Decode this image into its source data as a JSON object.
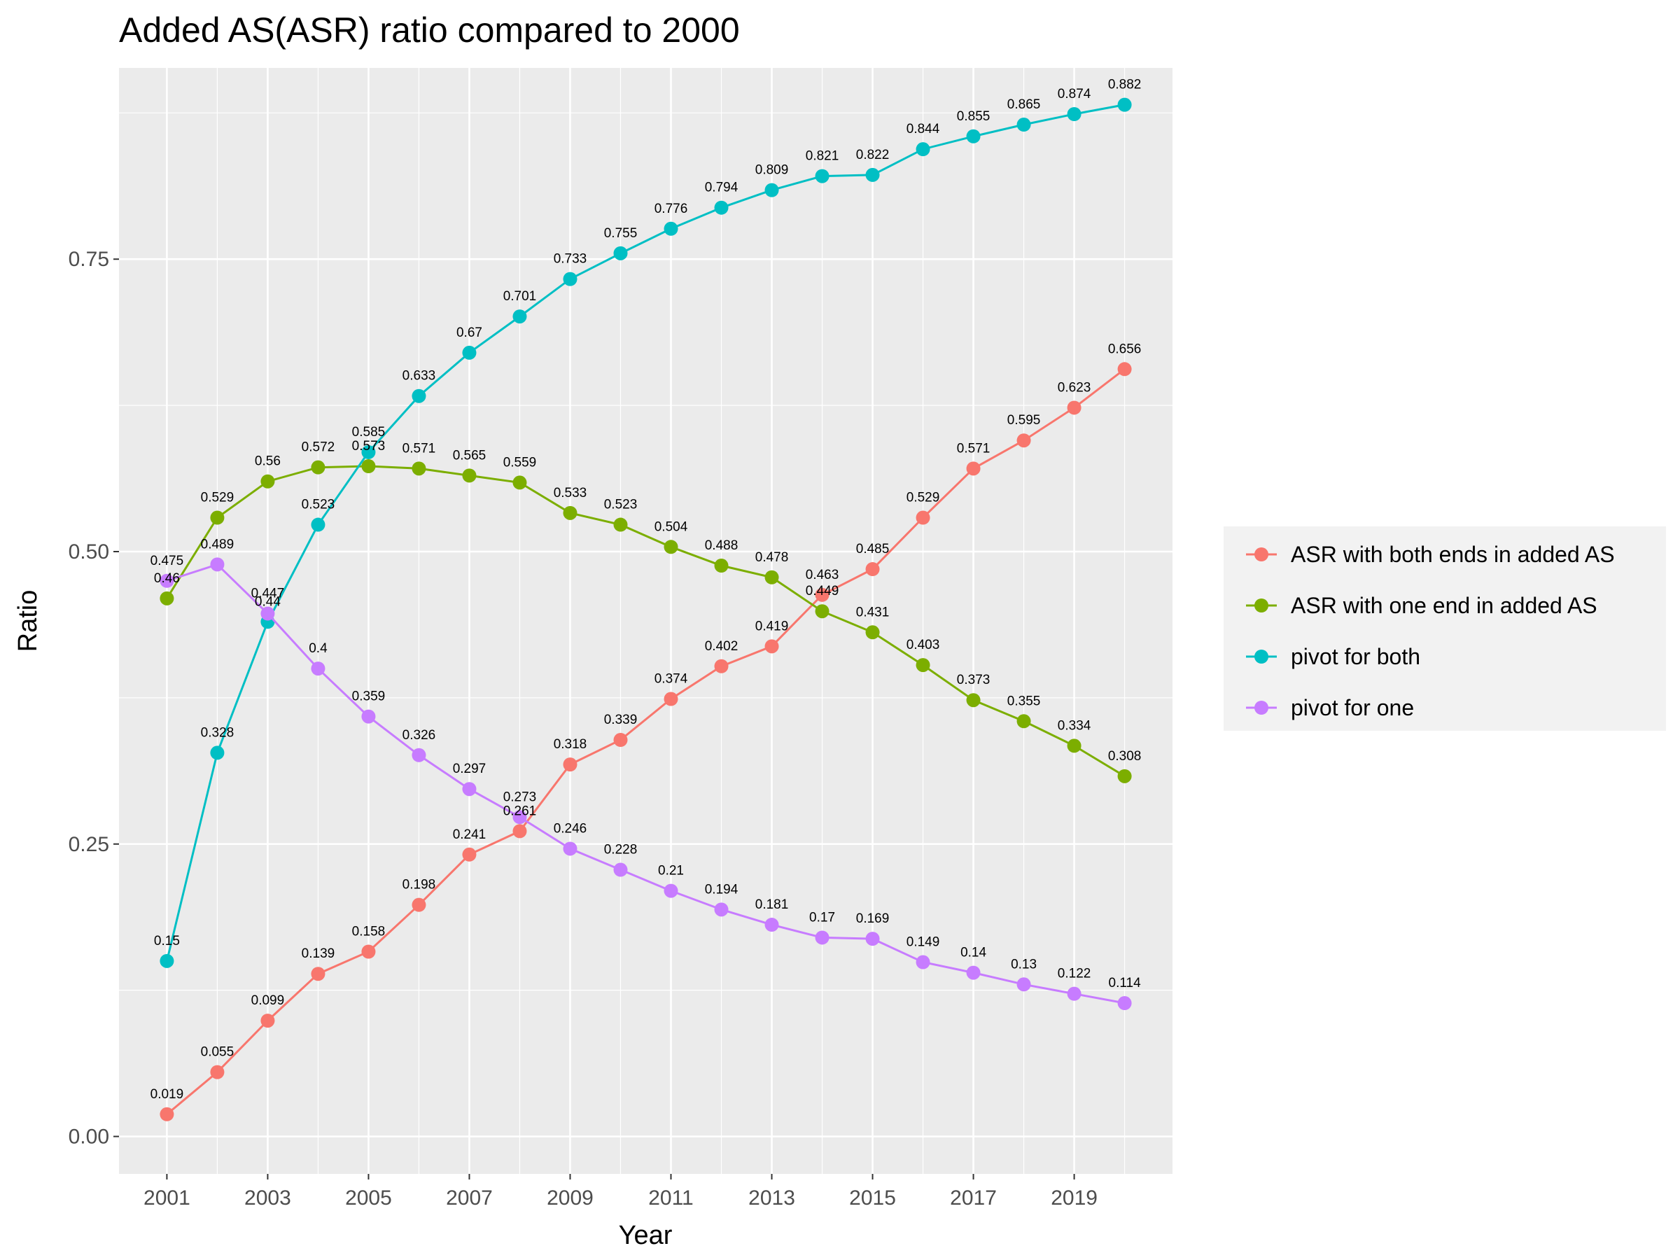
{
  "chart_data": {
    "type": "line",
    "title": "Added AS(ASR) ratio compared to 2000",
    "xlabel": "Year",
    "ylabel": "Ratio",
    "x": [
      2001,
      2002,
      2003,
      2004,
      2005,
      2006,
      2007,
      2008,
      2009,
      2010,
      2011,
      2012,
      2013,
      2014,
      2015,
      2016,
      2017,
      2018,
      2019,
      2020
    ],
    "xticks": [
      "2001",
      "2003",
      "2005",
      "2007",
      "2009",
      "2011",
      "2013",
      "2015",
      "2017",
      "2019"
    ],
    "yticks": [
      "0.00",
      "0.25",
      "0.50",
      "0.75"
    ],
    "ylim": [
      -0.032,
      0.9135
    ],
    "xlim": [
      2000.05,
      2020.95
    ],
    "grid": true,
    "legend_position": "right",
    "series": [
      {
        "name": "ASR with both ends in added AS",
        "color": "#F8766D",
        "values": [
          0.019,
          0.055,
          0.099,
          0.139,
          0.158,
          0.198,
          0.241,
          0.261,
          0.318,
          0.339,
          0.374,
          0.402,
          0.419,
          0.463,
          0.485,
          0.529,
          0.571,
          0.595,
          0.623,
          0.656
        ],
        "labels": [
          "0.019",
          "0.055",
          "0.099",
          "0.139",
          "0.158",
          "0.198",
          "0.241",
          "0.261",
          "0.318",
          "0.339",
          "0.374",
          "0.402",
          "0.419",
          "0.463",
          "0.485",
          "0.529",
          "0.571",
          "0.595",
          "0.623",
          "0.656"
        ]
      },
      {
        "name": "ASR with one end in added AS",
        "color": "#7CAE00",
        "values": [
          0.46,
          0.529,
          0.56,
          0.572,
          0.573,
          0.571,
          0.565,
          0.559,
          0.533,
          0.523,
          0.504,
          0.488,
          0.478,
          0.449,
          0.431,
          0.403,
          0.373,
          0.355,
          0.334,
          0.308
        ],
        "labels": [
          "0.46",
          "0.529",
          "0.56",
          "0.572",
          "0.573",
          "0.571",
          "0.565",
          "0.559",
          "0.533",
          "0.523",
          "0.504",
          "0.488",
          "0.478",
          "0.449",
          "0.431",
          "0.403",
          "0.373",
          "0.355",
          "0.334",
          "0.308"
        ]
      },
      {
        "name": "pivot for both",
        "color": "#00BFC4",
        "values": [
          0.15,
          0.328,
          0.44,
          0.523,
          0.585,
          0.633,
          0.67,
          0.701,
          0.733,
          0.755,
          0.776,
          0.794,
          0.809,
          0.821,
          0.822,
          0.844,
          0.855,
          0.865,
          0.874,
          0.882
        ],
        "labels": [
          "0.15",
          "0.328",
          "0.44",
          "0.523",
          "0.585",
          "0.633",
          "0.67",
          "0.701",
          "0.733",
          "0.755",
          "0.776",
          "0.794",
          "0.809",
          "0.821",
          "0.822",
          "0.844",
          "0.855",
          "0.865",
          "0.874",
          "0.882"
        ]
      },
      {
        "name": "pivot for one",
        "color": "#C77CFF",
        "values": [
          0.475,
          0.489,
          0.447,
          0.4,
          0.359,
          0.326,
          0.297,
          0.273,
          0.246,
          0.228,
          0.21,
          0.194,
          0.181,
          0.17,
          0.169,
          0.149,
          0.14,
          0.13,
          0.122,
          0.114
        ],
        "labels": [
          "0.475",
          "0.489",
          "0.447",
          "0.4",
          "0.359",
          "0.326",
          "0.297",
          "0.273",
          "0.246",
          "0.228",
          "0.21",
          "0.194",
          "0.181",
          "0.17",
          "0.169",
          "0.149",
          "0.14",
          "0.13",
          "0.122",
          "0.114"
        ]
      }
    ]
  }
}
